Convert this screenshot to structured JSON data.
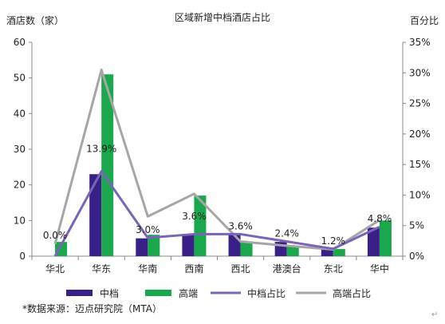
{
  "chart_data": {
    "type": "bar",
    "title": "区域新增中档酒店占比",
    "ylabel": "酒店数（家）",
    "y2label": "百分比",
    "categories": [
      "华北",
      "华东",
      "华南",
      "西南",
      "西北",
      "港澳台",
      "东北",
      "华中"
    ],
    "ylim": [
      0,
      60
    ],
    "y_ticks": [
      0,
      10,
      20,
      30,
      40,
      50,
      60
    ],
    "y2lim": [
      0,
      35
    ],
    "y2_ticks": [
      "0%",
      "5%",
      "10%",
      "15%",
      "20%",
      "25%",
      "30%",
      "35%"
    ],
    "series": [
      {
        "name": "中档",
        "type": "bar",
        "axis": "left",
        "color": "#3a1f88",
        "values": [
          0,
          23,
          5,
          6,
          6,
          4,
          2,
          8
        ]
      },
      {
        "name": "高端",
        "type": "bar",
        "axis": "left",
        "color": "#1aa84c",
        "values": [
          4,
          51,
          6,
          17,
          4,
          3,
          2,
          10
        ]
      },
      {
        "name": "中档占比",
        "type": "line",
        "axis": "right",
        "color": "#7a64b8",
        "values": [
          0.0,
          13.9,
          3.0,
          3.6,
          3.6,
          2.4,
          1.2,
          4.8
        ]
      },
      {
        "name": "高端占比",
        "type": "line",
        "axis": "right",
        "color": "#a6a6a6",
        "values": [
          2.0,
          30.5,
          6.5,
          10.2,
          2.4,
          1.7,
          1.1,
          5.9
        ]
      }
    ],
    "data_labels": [
      "0.0%",
      "13.9%",
      "3.0%",
      "3.6%",
      "3.6%",
      "2.4%",
      "1.2%",
      "4.8%"
    ],
    "grid": false,
    "legend_position": "bottom"
  },
  "footnote": "*数据来源：迈点研究院（MTA）",
  "corner_mark": "↵"
}
